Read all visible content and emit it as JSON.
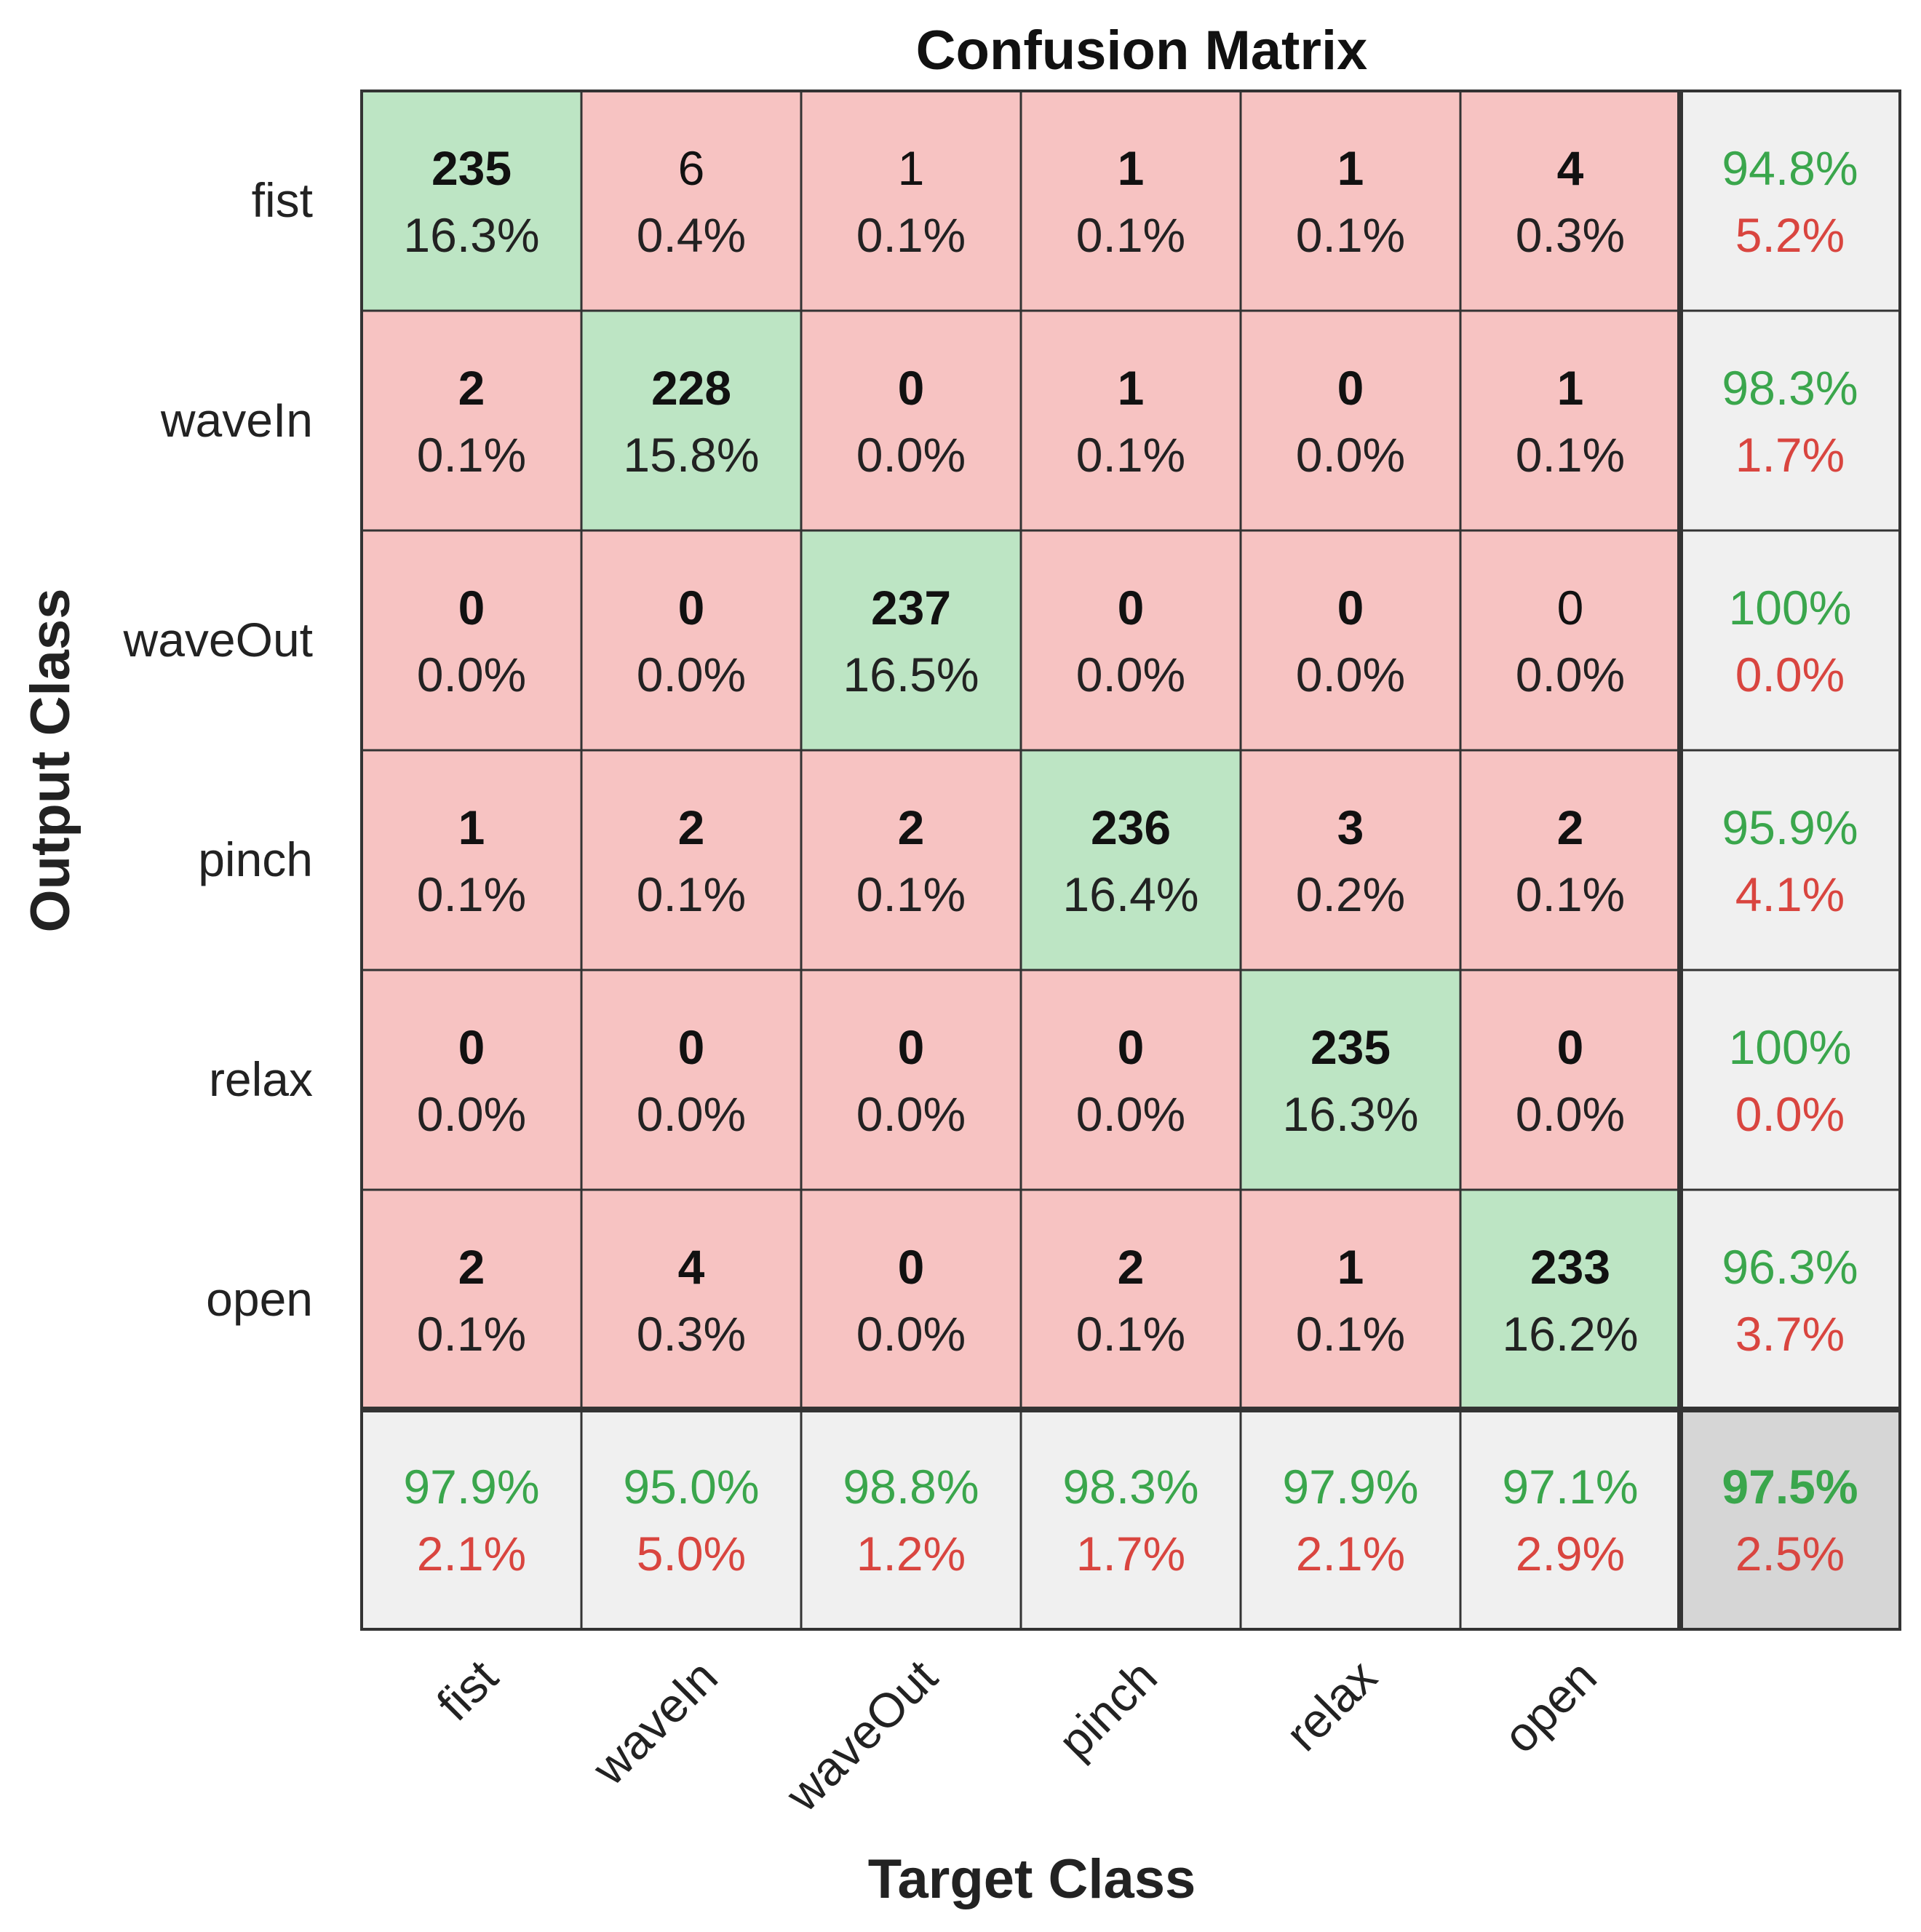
{
  "chart_data": {
    "type": "heatmap",
    "title": "Confusion Matrix",
    "xlabel": "Target Class",
    "ylabel": "Output Class",
    "classes": [
      "fist",
      "waveIn",
      "waveOut",
      "pinch",
      "relax",
      "open"
    ],
    "rows": [
      {
        "label": "fist",
        "cells": [
          {
            "count": "235",
            "pct": "16.3%",
            "bold": true
          },
          {
            "count": "6",
            "pct": "0.4%",
            "bold": false
          },
          {
            "count": "1",
            "pct": "0.1%",
            "bold": false
          },
          {
            "count": "1",
            "pct": "0.1%",
            "bold": true
          },
          {
            "count": "1",
            "pct": "0.1%",
            "bold": true
          },
          {
            "count": "4",
            "pct": "0.3%",
            "bold": true
          }
        ],
        "precision": "94.8%",
        "error": "5.2%"
      },
      {
        "label": "waveIn",
        "cells": [
          {
            "count": "2",
            "pct": "0.1%",
            "bold": true
          },
          {
            "count": "228",
            "pct": "15.8%",
            "bold": true
          },
          {
            "count": "0",
            "pct": "0.0%",
            "bold": true
          },
          {
            "count": "1",
            "pct": "0.1%",
            "bold": true
          },
          {
            "count": "0",
            "pct": "0.0%",
            "bold": true
          },
          {
            "count": "1",
            "pct": "0.1%",
            "bold": true
          }
        ],
        "precision": "98.3%",
        "error": "1.7%"
      },
      {
        "label": "waveOut",
        "cells": [
          {
            "count": "0",
            "pct": "0.0%",
            "bold": true
          },
          {
            "count": "0",
            "pct": "0.0%",
            "bold": true
          },
          {
            "count": "237",
            "pct": "16.5%",
            "bold": true
          },
          {
            "count": "0",
            "pct": "0.0%",
            "bold": true
          },
          {
            "count": "0",
            "pct": "0.0%",
            "bold": true
          },
          {
            "count": "0",
            "pct": "0.0%",
            "bold": false
          }
        ],
        "precision": "100%",
        "error": "0.0%"
      },
      {
        "label": "pinch",
        "cells": [
          {
            "count": "1",
            "pct": "0.1%",
            "bold": true
          },
          {
            "count": "2",
            "pct": "0.1%",
            "bold": true
          },
          {
            "count": "2",
            "pct": "0.1%",
            "bold": true
          },
          {
            "count": "236",
            "pct": "16.4%",
            "bold": true
          },
          {
            "count": "3",
            "pct": "0.2%",
            "bold": true
          },
          {
            "count": "2",
            "pct": "0.1%",
            "bold": true
          }
        ],
        "precision": "95.9%",
        "error": "4.1%"
      },
      {
        "label": "relax",
        "cells": [
          {
            "count": "0",
            "pct": "0.0%",
            "bold": true
          },
          {
            "count": "0",
            "pct": "0.0%",
            "bold": true
          },
          {
            "count": "0",
            "pct": "0.0%",
            "bold": true
          },
          {
            "count": "0",
            "pct": "0.0%",
            "bold": true
          },
          {
            "count": "235",
            "pct": "16.3%",
            "bold": true
          },
          {
            "count": "0",
            "pct": "0.0%",
            "bold": true
          }
        ],
        "precision": "100%",
        "error": "0.0%"
      },
      {
        "label": "open",
        "cells": [
          {
            "count": "2",
            "pct": "0.1%",
            "bold": true
          },
          {
            "count": "4",
            "pct": "0.3%",
            "bold": true
          },
          {
            "count": "0",
            "pct": "0.0%",
            "bold": true
          },
          {
            "count": "2",
            "pct": "0.1%",
            "bold": true
          },
          {
            "count": "1",
            "pct": "0.1%",
            "bold": true
          },
          {
            "count": "233",
            "pct": "16.2%",
            "bold": true
          }
        ],
        "precision": "96.3%",
        "error": "3.7%"
      }
    ],
    "column_summary": [
      {
        "recall": "97.9%",
        "error": "2.1%"
      },
      {
        "recall": "95.0%",
        "error": "5.0%"
      },
      {
        "recall": "98.8%",
        "error": "1.2%"
      },
      {
        "recall": "98.3%",
        "error": "1.7%"
      },
      {
        "recall": "97.9%",
        "error": "2.1%"
      },
      {
        "recall": "97.1%",
        "error": "2.9%"
      }
    ],
    "overall": {
      "accuracy": "97.5%",
      "error": "2.5%"
    },
    "colors": {
      "correct": "#bde5c4",
      "incorrect": "#f7c3c2",
      "summary": "#f0f0f0",
      "overall": "#d6d6d6",
      "good_text": "#3aa64c",
      "bad_text": "#d9453f"
    }
  }
}
